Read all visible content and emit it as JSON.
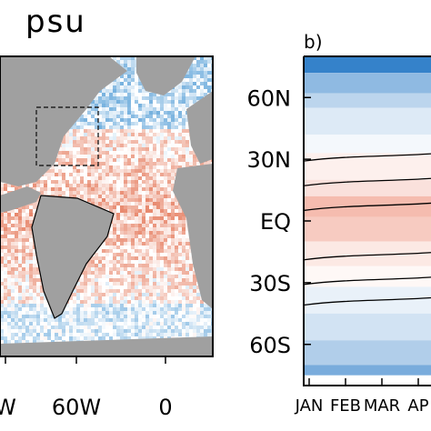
{
  "figure": {
    "units_label": "psu",
    "panel_b_label": "b)"
  },
  "chart_data": [
    {
      "type": "heatmap",
      "panel": "a",
      "title": "psu",
      "x_ticks": [
        "W",
        "60W",
        "0"
      ],
      "description_colors": {
        "ocean_positive": "#e8896e",
        "ocean_negative": "#3a8fd0",
        "land": "#a0a0a0",
        "ice": "#ffffff"
      }
    },
    {
      "type": "heatmap",
      "panel": "b",
      "title": "b)",
      "x_ticks": [
        "JAN",
        "FEB",
        "MAR",
        "AP"
      ],
      "y_ticks": [
        "60N",
        "30N",
        "EQ",
        "30S",
        "60S"
      ],
      "y_values": [
        60,
        30,
        0,
        -30,
        -60
      ],
      "ylim": [
        -80,
        80
      ],
      "bands": [
        {
          "lat_top": 80,
          "lat_bottom": 72,
          "value": -0.9
        },
        {
          "lat_top": 72,
          "lat_bottom": 62,
          "value": -0.5
        },
        {
          "lat_top": 62,
          "lat_bottom": 55,
          "value": -0.3
        },
        {
          "lat_top": 55,
          "lat_bottom": 42,
          "value": -0.15
        },
        {
          "lat_top": 42,
          "lat_bottom": 33,
          "value": -0.05
        },
        {
          "lat_top": 33,
          "lat_bottom": 20,
          "value": 0.1
        },
        {
          "lat_top": 20,
          "lat_bottom": 12,
          "value": 0.2
        },
        {
          "lat_top": 12,
          "lat_bottom": 2,
          "value": 0.45
        },
        {
          "lat_top": 2,
          "lat_bottom": -10,
          "value": 0.35
        },
        {
          "lat_top": -10,
          "lat_bottom": -22,
          "value": 0.15
        },
        {
          "lat_top": -22,
          "lat_bottom": -32,
          "value": 0.05
        },
        {
          "lat_top": -32,
          "lat_bottom": -45,
          "value": -0.1
        },
        {
          "lat_top": -45,
          "lat_bottom": -58,
          "value": -0.2
        },
        {
          "lat_top": -58,
          "lat_bottom": -70,
          "value": -0.35
        },
        {
          "lat_top": -70,
          "lat_bottom": -75,
          "value": -0.6
        }
      ],
      "contour_lats": [
        30,
        18,
        6,
        -18,
        -30,
        -40
      ],
      "colors": {
        "positive": "#e8694e",
        "negative": "#1f74c4",
        "neutral": "#ffffff",
        "contour": "#000000"
      }
    }
  ]
}
